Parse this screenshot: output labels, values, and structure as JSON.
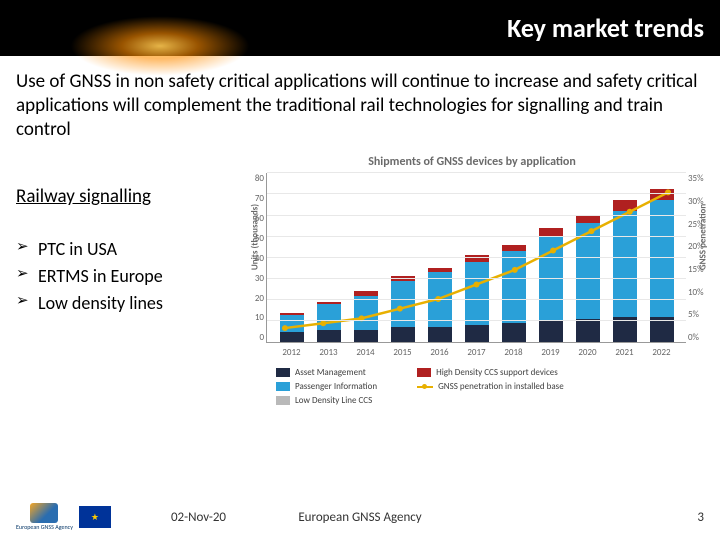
{
  "header": {
    "title": "Key market trends"
  },
  "intro": "Use of GNSS in non safety critical applications will continue to increase and safety critical applications will complement the traditional rail technologies for signalling and train control",
  "section_heading": "Railway signalling",
  "bullets": [
    "PTC in USA",
    "ERTMS in Europe",
    "Low density lines"
  ],
  "chart": {
    "type": "stacked-bar-with-line",
    "title": "Shipments of GNSS devices by application",
    "y_label": "Units (thousands)",
    "y2_label": "GNSS penetration",
    "y_max": 80,
    "y_ticks": [
      0,
      10,
      20,
      30,
      40,
      50,
      60,
      70,
      80
    ],
    "y2_ticks": [
      "0%",
      "5%",
      "10%",
      "15%",
      "20%",
      "25%",
      "30%",
      "35%"
    ],
    "categories": [
      "2012",
      "2013",
      "2014",
      "2015",
      "2016",
      "2017",
      "2018",
      "2019",
      "2020",
      "2021",
      "2022"
    ],
    "series": [
      {
        "name": "Asset Management",
        "color": "#1f2a44",
        "values": [
          5,
          6,
          6,
          7,
          7,
          8,
          9,
          10,
          11,
          12,
          12
        ]
      },
      {
        "name": "Passenger Information",
        "color": "#2aa0d8",
        "values": [
          8,
          12,
          16,
          22,
          26,
          30,
          34,
          40,
          45,
          50,
          55
        ]
      },
      {
        "name": "Low Density Line CCS",
        "color": "#b9b9b9",
        "values": [
          0,
          0,
          0,
          0,
          0,
          0,
          0,
          0,
          0,
          0,
          0
        ]
      },
      {
        "name": "High Density CCS support devices",
        "color": "#b02020",
        "values": [
          1,
          1,
          2,
          2,
          2,
          3,
          3,
          4,
          4,
          5,
          5
        ]
      }
    ],
    "line": {
      "name": "GNSS penetration in installed base",
      "color": "#e8b000",
      "values_pct": [
        3,
        4,
        5,
        7,
        9,
        12,
        15,
        19,
        23,
        27,
        31
      ]
    },
    "background": "#ffffff",
    "grid_color": "#e8e8e8"
  },
  "footer": {
    "date": "02-Nov-20",
    "org": "European GNSS Agency",
    "page": "3",
    "gsa_label": "European GNSS Agency"
  }
}
